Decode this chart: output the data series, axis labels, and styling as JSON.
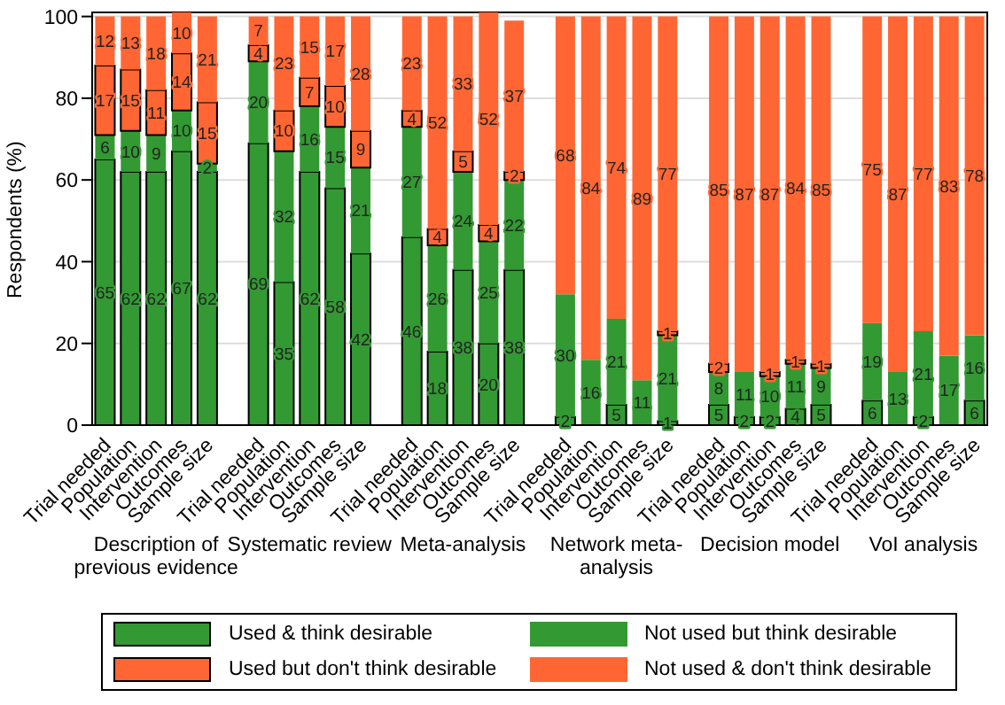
{
  "chart_data": {
    "type": "bar",
    "stacked": true,
    "ylabel": "Respondents (%)",
    "ylim": [
      0,
      101
    ],
    "yticks": [
      0,
      20,
      40,
      60,
      80,
      100
    ],
    "grid": "y",
    "legend": "bottom",
    "categories": [
      "Trial needed",
      "Population",
      "Intervention",
      "Outcomes",
      "Sample size",
      null,
      "Trial needed",
      "Population",
      "Intervention",
      "Outcomes",
      "Sample size",
      null,
      "Trial needed",
      "Population",
      "Intervention",
      "Outcomes",
      "Sample size",
      null,
      "Trial needed",
      "Population",
      "Intervention",
      "Outcomes",
      "Sample size",
      null,
      "Trial needed",
      "Population",
      "Intervention",
      "Outcomes",
      "Sample size",
      null,
      "Trial needed",
      "Population",
      "Intervention",
      "Outcomes",
      "Sample size"
    ],
    "annotations": [
      "Description of previous evidence",
      "Systematic review",
      "Meta-analysis",
      "Network meta-analysis",
      "Decision model",
      "VoI analysis"
    ],
    "series": [
      {
        "name": "Used & think desirable",
        "color": "#339933",
        "values": [
          65,
          62,
          62,
          67,
          62,
          null,
          69,
          35,
          62,
          58,
          42,
          null,
          46,
          18,
          38,
          20,
          38,
          null,
          2,
          0,
          5,
          0,
          1,
          null,
          5,
          2,
          2,
          4,
          5,
          null,
          6,
          0,
          2,
          0,
          6
        ],
        "value_labels": [
          "65",
          "62",
          "62",
          "67",
          "62",
          null,
          "69",
          "35",
          "62",
          "58",
          "42",
          null,
          "46",
          "18",
          "38",
          "20",
          "38",
          null,
          "2",
          null,
          "5",
          null,
          "1",
          null,
          "5",
          "2",
          "2",
          "4",
          "5",
          null,
          "6",
          null,
          "2",
          null,
          "6"
        ]
      },
      {
        "name": "Not used but think desirable",
        "color": "#339933",
        "values": [
          6,
          10,
          9,
          10,
          2,
          null,
          20,
          32,
          16,
          15,
          21,
          null,
          27,
          26,
          24,
          25,
          22,
          null,
          30,
          16,
          21,
          11,
          21,
          null,
          8,
          11,
          10,
          11,
          9,
          null,
          19,
          13,
          21,
          17,
          16
        ],
        "value_labels": [
          "6",
          "10",
          "9",
          "10",
          "2",
          null,
          "20",
          "32",
          "16",
          "15",
          "21",
          null,
          "27",
          "26",
          "24",
          "25",
          "22",
          null,
          "30",
          "16",
          "21",
          "11",
          "21",
          null,
          "8",
          "11",
          "10",
          "11",
          "9",
          null,
          "19",
          "13",
          "21",
          "17",
          "16"
        ]
      },
      {
        "name": "Used but don't think desirable",
        "color": "#ff6633",
        "values": [
          17,
          15,
          11,
          14,
          15,
          null,
          4,
          10,
          7,
          10,
          9,
          null,
          4,
          4,
          5,
          4,
          2,
          null,
          0,
          0,
          0,
          0,
          1,
          null,
          2,
          0,
          1,
          1,
          1,
          null,
          0,
          0,
          0,
          0,
          0
        ],
        "value_labels": [
          "17",
          "15",
          "11",
          "14",
          "15",
          null,
          "4",
          "10",
          "7",
          "10",
          "9",
          null,
          "4",
          "4",
          "5",
          "4",
          "2",
          null,
          null,
          null,
          null,
          null,
          "1",
          null,
          "2",
          null,
          "1",
          "1",
          "1",
          null,
          null,
          null,
          null,
          null,
          null
        ]
      },
      {
        "name": "Not used & don't think desirable",
        "color": "#ff6633",
        "values": [
          12,
          13,
          18,
          10,
          21,
          null,
          7,
          23,
          15,
          17,
          28,
          null,
          23,
          52,
          33,
          52,
          37,
          null,
          68,
          84,
          74,
          89,
          77,
          null,
          85,
          87,
          87,
          84,
          85,
          null,
          75,
          87,
          77,
          83,
          78
        ],
        "value_labels": [
          "12",
          "13",
          "18",
          "10",
          "21",
          null,
          "7",
          "23",
          "15",
          "17",
          "28",
          null,
          "23",
          "52",
          "33",
          "52",
          "37",
          null,
          "68",
          "84",
          "74",
          "89",
          "77",
          null,
          "85",
          "87",
          "87",
          "84",
          "85",
          null,
          "75",
          "87",
          "77",
          "83",
          "78"
        ]
      }
    ]
  }
}
